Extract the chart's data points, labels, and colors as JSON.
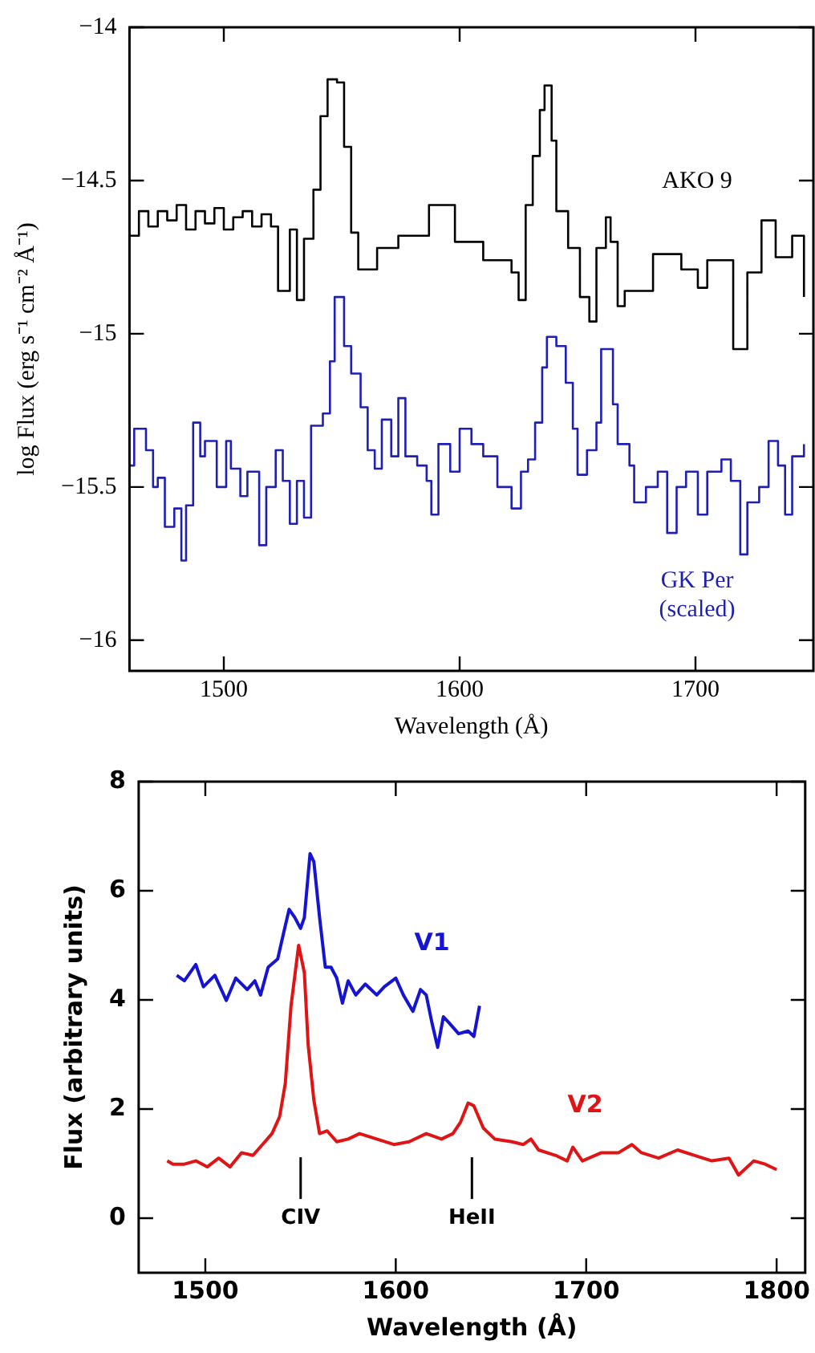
{
  "chart_data": [
    {
      "type": "step",
      "xlabel": "Wavelength (Å)",
      "ylabel": "log Flux (erg s⁻¹ cm⁻² Å⁻¹)",
      "xlim": [
        1460,
        1750
      ],
      "ylim": [
        -16.1,
        -14
      ],
      "xticks": [
        1500,
        1600,
        1700
      ],
      "yticks": [
        -16,
        -15.5,
        -15,
        -14.5,
        -14
      ],
      "series": [
        {
          "name": "AKO 9",
          "color": "#000000",
          "x": [
            1460,
            1464,
            1468,
            1472,
            1476,
            1480,
            1484,
            1488,
            1492,
            1496,
            1500,
            1504,
            1508,
            1512,
            1516,
            1520,
            1523,
            1528,
            1531,
            1534,
            1538,
            1541,
            1544,
            1548,
            1551,
            1554,
            1557,
            1565,
            1574,
            1587,
            1598,
            1610,
            1622,
            1625,
            1628,
            1631,
            1634,
            1636,
            1639,
            1641,
            1646,
            1651,
            1655,
            1658,
            1662,
            1664,
            1667,
            1670,
            1682,
            1694,
            1701,
            1705,
            1716,
            1722,
            1728,
            1734,
            1741,
            1746
          ],
          "values": [
            -14.68,
            -14.6,
            -14.65,
            -14.6,
            -14.63,
            -14.58,
            -14.66,
            -14.6,
            -14.64,
            -14.59,
            -14.66,
            -14.62,
            -14.6,
            -14.65,
            -14.61,
            -14.65,
            -14.86,
            -14.66,
            -14.89,
            -14.69,
            -14.53,
            -14.29,
            -14.17,
            -14.18,
            -14.39,
            -14.67,
            -14.79,
            -14.72,
            -14.68,
            -14.58,
            -14.7,
            -14.76,
            -14.8,
            -14.89,
            -14.58,
            -14.42,
            -14.27,
            -14.19,
            -14.37,
            -14.6,
            -14.72,
            -14.88,
            -14.96,
            -14.72,
            -14.62,
            -14.7,
            -14.91,
            -14.86,
            -14.74,
            -14.79,
            -14.85,
            -14.76,
            -15.05,
            -14.8,
            -14.63,
            -14.75,
            -14.68,
            -14.88
          ]
        },
        {
          "name": "GK Per (scaled)",
          "color": "#1f1fb4",
          "x": [
            1460,
            1462,
            1467,
            1470,
            1472,
            1475,
            1479,
            1482,
            1484,
            1487,
            1490,
            1492,
            1497,
            1501,
            1503,
            1507,
            1510,
            1515,
            1518,
            1522,
            1525,
            1528,
            1531,
            1534,
            1537,
            1542,
            1545,
            1547,
            1551,
            1554,
            1558,
            1561,
            1564,
            1567,
            1571,
            1574,
            1577,
            1582,
            1586,
            1588,
            1591,
            1596,
            1600,
            1605,
            1610,
            1616,
            1622,
            1626,
            1629,
            1632,
            1635,
            1637,
            1641,
            1645,
            1648,
            1650,
            1654,
            1658,
            1660,
            1662,
            1665,
            1667,
            1672,
            1674,
            1679,
            1684,
            1688,
            1692,
            1696,
            1701,
            1705,
            1711,
            1715,
            1719,
            1722,
            1727,
            1731,
            1735,
            1738,
            1741,
            1746
          ],
          "values": [
            -15.43,
            -15.31,
            -15.38,
            -15.5,
            -15.47,
            -15.63,
            -15.57,
            -15.74,
            -15.56,
            -15.29,
            -15.4,
            -15.35,
            -15.5,
            -15.35,
            -15.44,
            -15.53,
            -15.45,
            -15.69,
            -15.5,
            -15.38,
            -15.48,
            -15.62,
            -15.48,
            -15.6,
            -15.3,
            -15.26,
            -15.09,
            -14.88,
            -15.04,
            -15.13,
            -15.24,
            -15.38,
            -15.44,
            -15.28,
            -15.4,
            -15.21,
            -15.4,
            -15.43,
            -15.48,
            -15.59,
            -15.36,
            -15.45,
            -15.31,
            -15.36,
            -15.4,
            -15.5,
            -15.57,
            -15.45,
            -15.41,
            -15.29,
            -15.11,
            -15.01,
            -15.04,
            -15.16,
            -15.31,
            -15.46,
            -15.38,
            -15.29,
            -15.05,
            -15.05,
            -15.23,
            -15.36,
            -15.43,
            -15.55,
            -15.5,
            -15.45,
            -15.65,
            -15.5,
            -15.45,
            -15.59,
            -15.45,
            -15.41,
            -15.48,
            -15.72,
            -15.55,
            -15.5,
            -15.35,
            -15.43,
            -15.59,
            -15.4,
            -15.36
          ]
        }
      ]
    },
    {
      "type": "line",
      "xlabel": "Wavelength (Å)",
      "ylabel": "Flux (arbitrary units)",
      "xlim": [
        1465,
        1815
      ],
      "ylim": [
        -1,
        8
      ],
      "xticks": [
        1500,
        1600,
        1700,
        1800
      ],
      "yticks": [
        0,
        2,
        4,
        6,
        8
      ],
      "annotations": [
        "CIV",
        "HeII"
      ],
      "series": [
        {
          "name": "V1",
          "color": "#1414d2",
          "x": [
            1485,
            1489,
            1495,
            1499,
            1505,
            1511,
            1516,
            1522,
            1526,
            1529,
            1533,
            1538,
            1541,
            1544,
            1547,
            1550,
            1552,
            1555,
            1557,
            1560,
            1563,
            1566,
            1569,
            1572,
            1575,
            1579,
            1584,
            1590,
            1594,
            1600,
            1604,
            1609,
            1613,
            1616,
            1619,
            1622,
            1625,
            1628,
            1633,
            1638,
            1641,
            1644
          ],
          "values": [
            4.45,
            4.35,
            4.65,
            4.24,
            4.45,
            3.99,
            4.4,
            4.19,
            4.35,
            4.09,
            4.6,
            4.75,
            5.21,
            5.66,
            5.51,
            5.31,
            5.51,
            6.68,
            6.53,
            5.51,
            4.6,
            4.6,
            4.4,
            3.94,
            4.35,
            4.09,
            4.29,
            4.09,
            4.24,
            4.4,
            4.09,
            3.79,
            4.19,
            4.09,
            3.58,
            3.13,
            3.69,
            3.58,
            3.38,
            3.43,
            3.33,
            3.89
          ]
        },
        {
          "name": "V2",
          "color": "#e01414",
          "x": [
            1480,
            1483,
            1489,
            1495,
            1501,
            1507,
            1513,
            1519,
            1525,
            1530,
            1535,
            1539,
            1542,
            1545,
            1549,
            1552,
            1554,
            1557,
            1560,
            1564,
            1569,
            1575,
            1581,
            1590,
            1599,
            1607,
            1616,
            1624,
            1630,
            1634,
            1638,
            1641,
            1646,
            1652,
            1661,
            1667,
            1671,
            1675,
            1684,
            1690,
            1693,
            1698,
            1708,
            1717,
            1724,
            1729,
            1738,
            1748,
            1757,
            1766,
            1775,
            1780,
            1788,
            1794,
            1800
          ],
          "values": [
            1.05,
            0.99,
            0.99,
            1.05,
            0.94,
            1.1,
            0.94,
            1.2,
            1.15,
            1.35,
            1.55,
            1.86,
            2.47,
            3.89,
            5.0,
            4.5,
            3.18,
            2.16,
            1.55,
            1.6,
            1.4,
            1.45,
            1.55,
            1.45,
            1.35,
            1.4,
            1.55,
            1.45,
            1.55,
            1.76,
            2.11,
            2.06,
            1.65,
            1.45,
            1.4,
            1.35,
            1.45,
            1.25,
            1.15,
            1.05,
            1.3,
            1.05,
            1.2,
            1.2,
            1.35,
            1.2,
            1.1,
            1.25,
            1.15,
            1.05,
            1.1,
            0.79,
            1.05,
            0.99,
            0.89
          ]
        }
      ]
    }
  ]
}
